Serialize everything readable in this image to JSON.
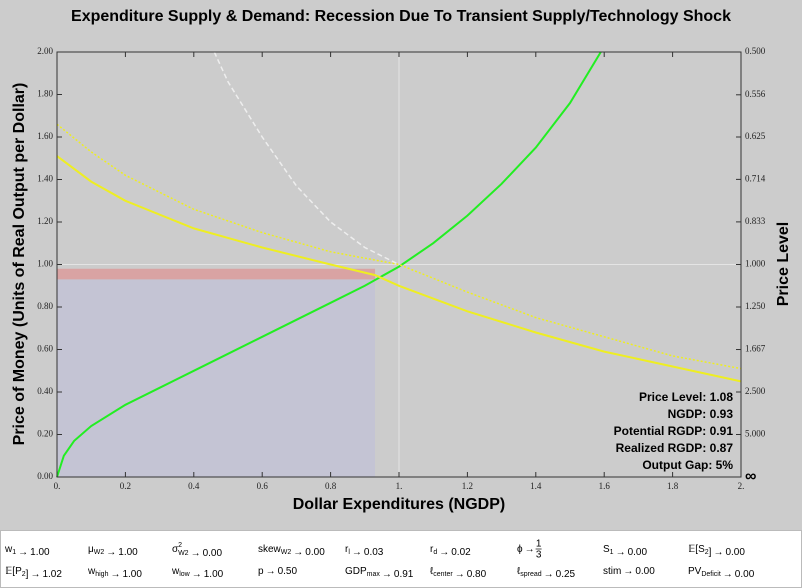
{
  "chart_data": {
    "type": "line",
    "title": "Expenditure Supply & Demand: Recession Due To Transient Supply/Technology Shock",
    "xlabel": "Dollar Expenditures (NGDP)",
    "ylabel": "Price of Money (Units of Real Output per Dollar)",
    "y2label": "Price Level",
    "xlim": [
      0,
      2
    ],
    "ylim": [
      0,
      2
    ],
    "y2scale": "reciprocal",
    "xticks": [
      {
        "value": 0,
        "label": "0."
      },
      0.2,
      0.4,
      0.6,
      0.8,
      {
        "value": 1,
        "label": "1."
      },
      1.2,
      1.4,
      1.6,
      1.8,
      {
        "value": 2,
        "label": "2."
      }
    ],
    "yticks": [
      {
        "value": 0,
        "label": "0.00"
      },
      {
        "value": 0.2,
        "label": "0.20"
      },
      {
        "value": 0.4,
        "label": "0.40"
      },
      {
        "value": 0.6,
        "label": "0.60"
      },
      {
        "value": 0.8,
        "label": "0.80"
      },
      {
        "value": 1,
        "label": "1.00"
      },
      {
        "value": 1.2,
        "label": "1.20"
      },
      {
        "value": 1.4,
        "label": "1.40"
      },
      {
        "value": 1.6,
        "label": "1.60"
      },
      {
        "value": 1.8,
        "label": "1.80"
      },
      {
        "value": 2,
        "label": "2.00"
      }
    ],
    "y2ticks": [
      {
        "value": 0.5,
        "label": "0.500"
      },
      0.556,
      0.625,
      0.714,
      0.833,
      {
        "value": 1,
        "label": "1.000"
      },
      {
        "value": 1.25,
        "label": "1.250"
      },
      1.667,
      {
        "value": 2.5,
        "label": "2.500"
      },
      {
        "value": 5,
        "label": "5.000"
      },
      {
        "value": null,
        "label": "∞"
      }
    ],
    "reference_x": 1,
    "reference_y": 1,
    "shaded_regions": [
      {
        "x": [
          0,
          0.93
        ],
        "y": [
          0,
          0.93
        ],
        "color": "#c4c4d4"
      },
      {
        "x": [
          0,
          0.93
        ],
        "y": [
          0.93,
          0.98
        ],
        "color": "#d9a3a3"
      }
    ],
    "series": [
      {
        "color": "#22ee22",
        "style": "solid",
        "x": [
          0,
          0.02,
          0.05,
          0.1,
          0.2,
          0.3,
          0.4,
          0.5,
          0.6,
          0.7,
          0.8,
          0.9,
          1.0,
          1.1,
          1.2,
          1.3,
          1.4,
          1.5,
          1.59
        ],
        "values": [
          0,
          0.1,
          0.17,
          0.24,
          0.34,
          0.42,
          0.5,
          0.58,
          0.66,
          0.74,
          0.82,
          0.9,
          0.99,
          1.1,
          1.23,
          1.38,
          1.55,
          1.76,
          2.0
        ]
      },
      {
        "color": "#eeee22",
        "style": "solid",
        "x": [
          0,
          0.1,
          0.2,
          0.4,
          0.6,
          0.8,
          0.93,
          1.0,
          1.2,
          1.4,
          1.6,
          1.8,
          2.0
        ],
        "values": [
          1.51,
          1.39,
          1.3,
          1.17,
          1.08,
          1.0,
          0.95,
          0.9,
          0.78,
          0.68,
          0.59,
          0.52,
          0.45
        ]
      },
      {
        "color": "#eeee22",
        "style": "dotted",
        "x": [
          0,
          0.1,
          0.2,
          0.4,
          0.6,
          0.8,
          1.0,
          1.2,
          1.4,
          1.6,
          1.8,
          2.0
        ],
        "values": [
          1.66,
          1.53,
          1.42,
          1.26,
          1.15,
          1.06,
          1.0,
          0.87,
          0.75,
          0.66,
          0.57,
          0.51
        ]
      },
      {
        "color": "#eeeeee",
        "style": "dashed",
        "x": [
          0.46,
          0.5,
          0.6,
          0.7,
          0.8,
          0.9,
          1.0
        ],
        "values": [
          2.0,
          1.86,
          1.6,
          1.37,
          1.2,
          1.08,
          1.0
        ]
      }
    ],
    "annotations": [
      "Price Level: 1.08",
      "NGDP: 0.93",
      "Potential RGDP: 0.91",
      "Realized RGDP: 0.87",
      "Output Gap: 5%"
    ]
  },
  "parameters": {
    "arrow": "→",
    "rows": [
      [
        {
          "symbol": "w",
          "sub": "1",
          "value": "1.00"
        },
        {
          "symbol": "μ",
          "sub": "W2",
          "value": "1.00"
        },
        {
          "symbol": "σ",
          "sup": "2",
          "sub": "W2",
          "value": "0.00"
        },
        {
          "symbol": "skew",
          "sub": "W2",
          "value": "0.00"
        },
        {
          "symbol": "r",
          "sub": "l",
          "value": "0.03"
        },
        {
          "symbol": "r",
          "sub": "d",
          "value": "0.02"
        },
        {
          "symbol": "ϕ",
          "num": "1",
          "den": "3"
        },
        {
          "symbol": "S",
          "sub": "1",
          "value": "0.00"
        },
        {
          "symbol": "𝔼[S",
          "sub": "2",
          "tail": "]",
          "value": "0.00"
        }
      ],
      [
        {
          "symbol": "𝔼[P",
          "sub": "2",
          "tail": "]",
          "value": "1.02"
        },
        {
          "symbol": "w",
          "sub": "high",
          "value": "1.00"
        },
        {
          "symbol": "w",
          "sub": "low",
          "value": "1.00"
        },
        {
          "symbol": "p",
          "value": "0.50"
        },
        {
          "symbol": "GDP",
          "sub": "max",
          "value": "0.91"
        },
        {
          "symbol": "ℓ",
          "sub": "center",
          "value": "0.80"
        },
        {
          "symbol": "ℓ",
          "sub": "spread",
          "value": "0.25"
        },
        {
          "symbol": "stim",
          "value": "0.00"
        },
        {
          "symbol": "PV",
          "sub": "Deficit",
          "value": "0.00"
        }
      ]
    ]
  }
}
